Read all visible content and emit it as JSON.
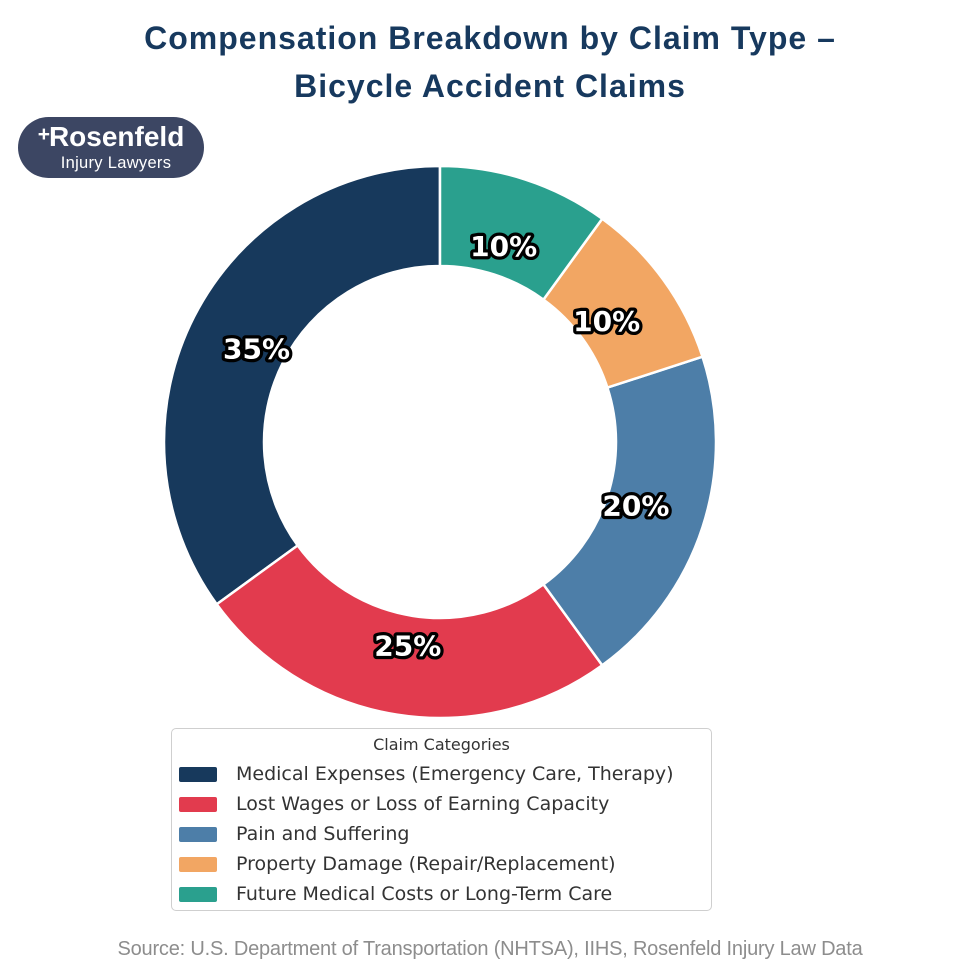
{
  "title": {
    "line1": "Compensation Breakdown by Claim Type –",
    "line2": "Bicycle Accident Claims"
  },
  "logo": {
    "plus": "+",
    "name": "Rosenfeld",
    "subtitle": "Injury Lawyers",
    "bg_color": "#3c4663"
  },
  "chart_data": {
    "type": "pie",
    "subtype": "donut",
    "title": "Compensation Breakdown by Claim Type – Bicycle Accident Claims",
    "categories": [
      "Medical Expenses (Emergency Care, Therapy)",
      "Lost Wages or Loss of Earning Capacity",
      "Pain and Suffering",
      "Property Damage (Repair/Replacement)",
      "Future Medical Costs or Long-Term Care"
    ],
    "values": [
      35,
      25,
      20,
      10,
      10
    ],
    "labels": [
      "35%",
      "25%",
      "20%",
      "10%",
      "10%"
    ],
    "colors": [
      "#17395c",
      "#e23b4e",
      "#4d7ea8",
      "#f2a663",
      "#2aa08e"
    ],
    "start_angle_deg": 90,
    "direction": "counterclockwise",
    "donut_hole_ratio": 0.64,
    "slice_border_color": "#ffffff",
    "label_text_color": "#ffffff",
    "label_outline_color": "#000000",
    "legend": {
      "title": "Claim Categories",
      "position": "bottom"
    }
  },
  "source": {
    "text": "Source: U.S. Department of Transportation (NHTSA), IIHS, Rosenfeld Injury Law Data"
  }
}
